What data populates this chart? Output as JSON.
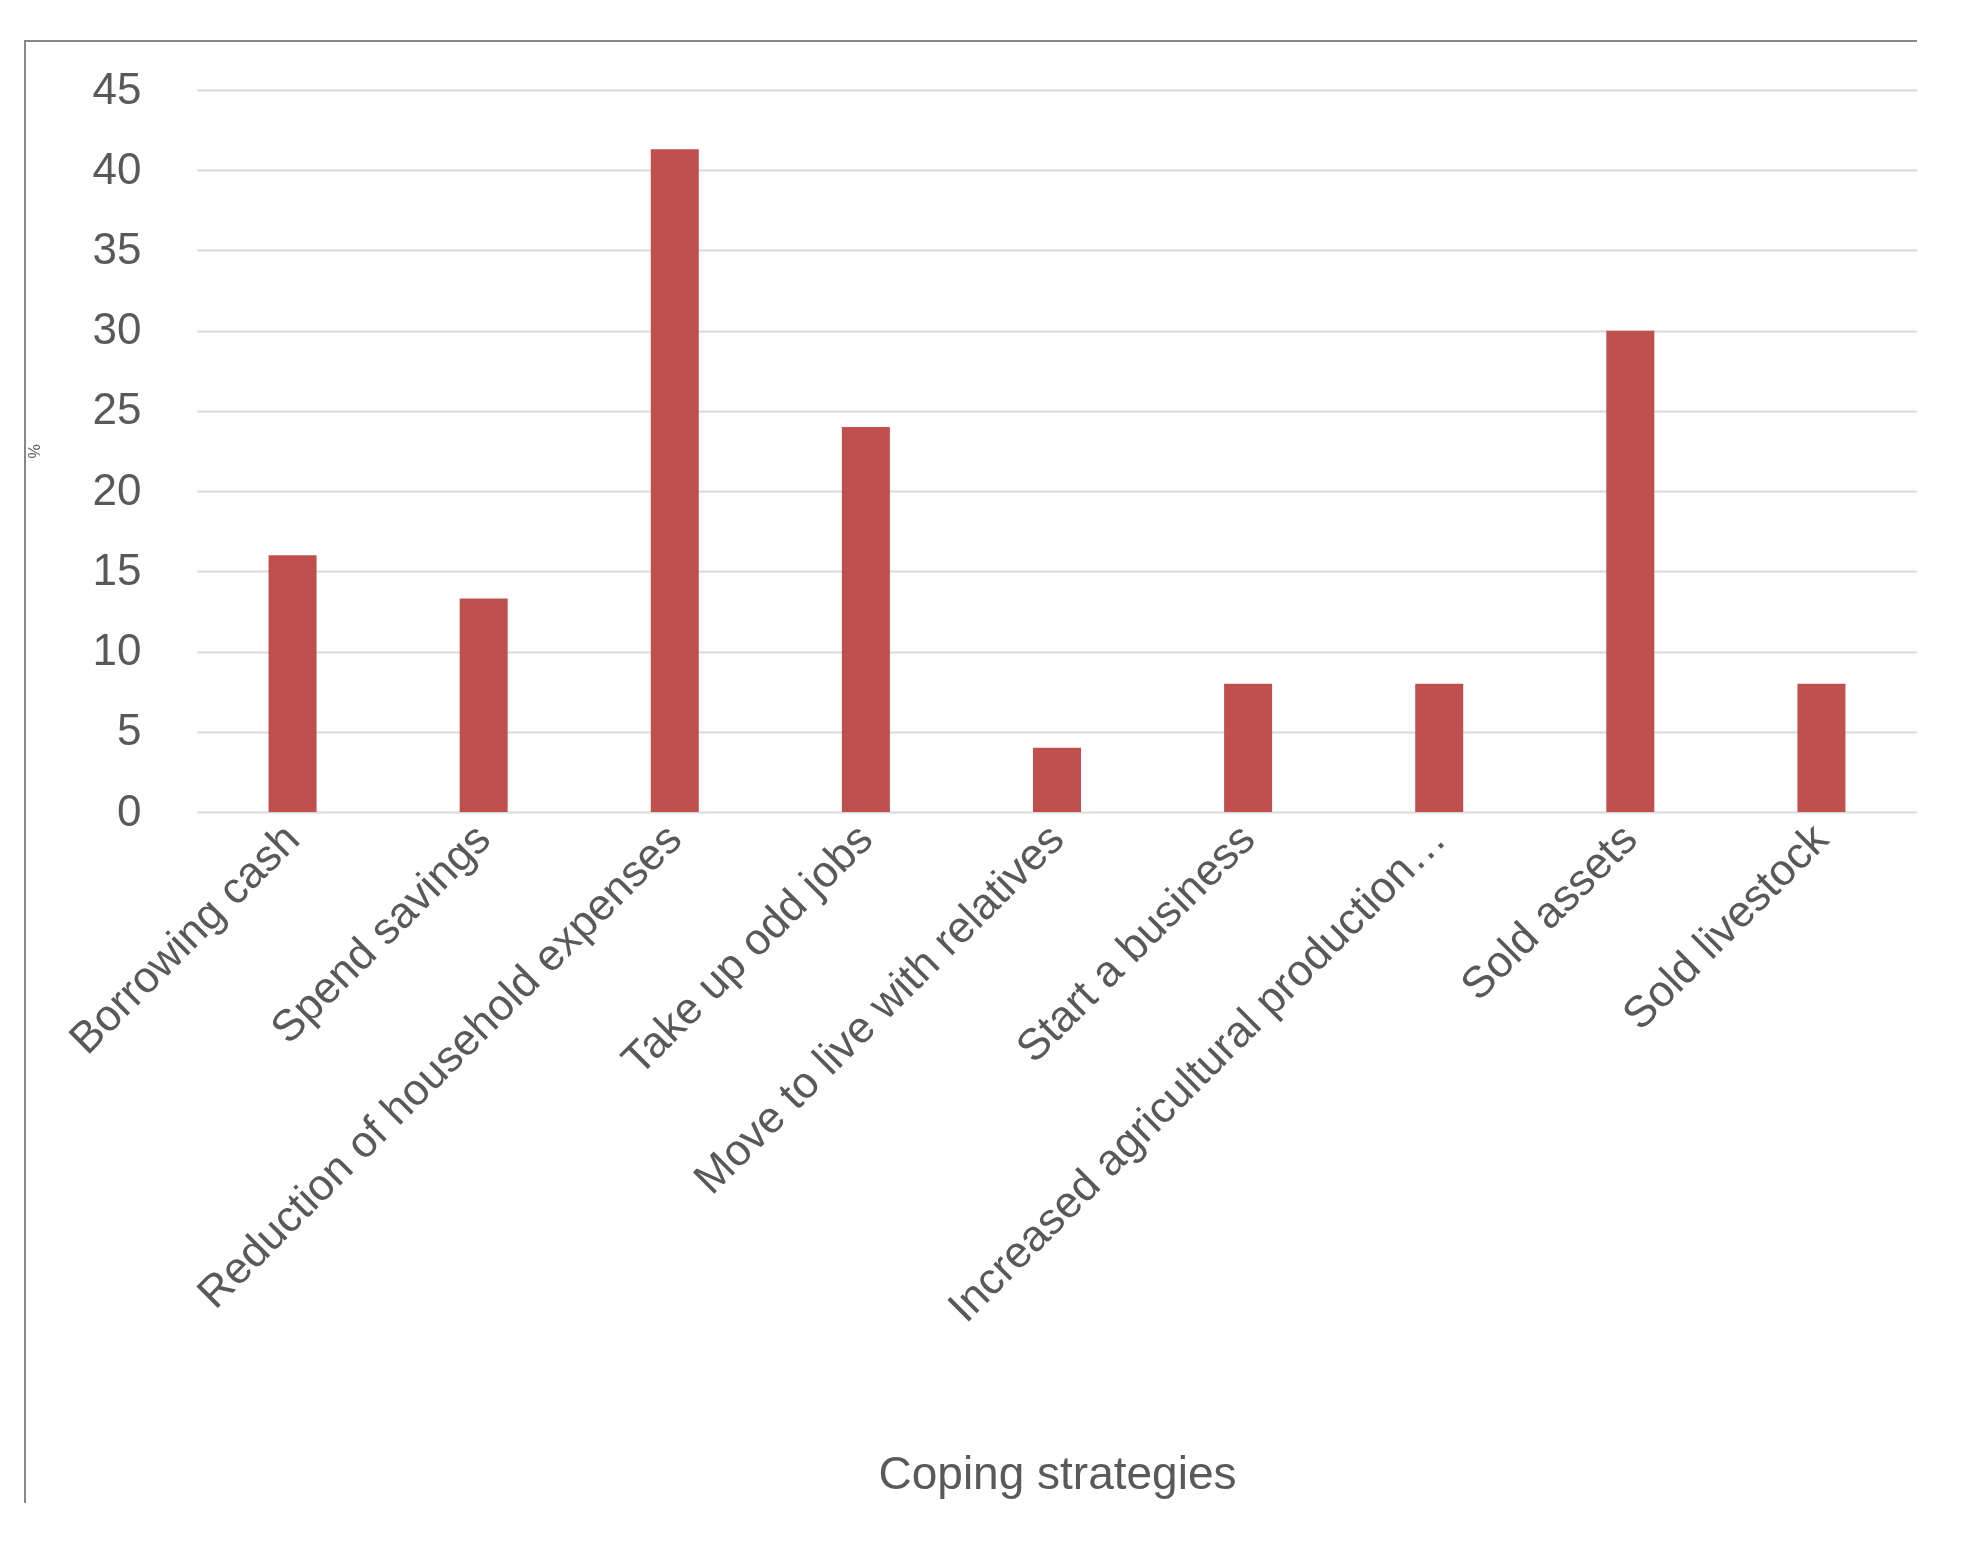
{
  "chart_data": {
    "type": "bar",
    "xlabel": "Coping strategies",
    "ylabel": "%",
    "categories": [
      "Borrowing cash",
      "Spend savings",
      "Reduction of household expenses",
      "Take up odd jobs",
      "Move to live with relatives",
      "Start a business",
      "Increased agricultural production…",
      "Sold assets",
      "Sold livestock"
    ],
    "values": [
      16,
      13.3,
      41.3,
      24,
      4,
      8,
      8,
      30,
      8
    ],
    "color": "#c0504d",
    "ylim": [
      0,
      45
    ],
    "yticks": [
      0,
      5,
      10,
      15,
      20,
      25,
      30,
      35,
      40,
      45
    ],
    "grid": "y"
  }
}
